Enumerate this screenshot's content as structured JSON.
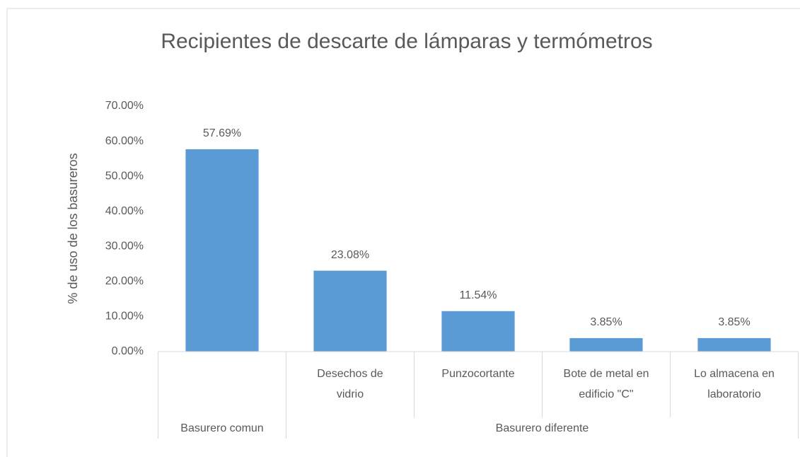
{
  "chart_data": {
    "type": "bar",
    "title": "Recipientes de descarte de lámparas y termómetros",
    "y_label": "% de uso de los basureros",
    "category_groups": [
      {
        "label": "Basurero comun",
        "categories": [
          null
        ]
      },
      {
        "label": "Basurero diferente",
        "categories": [
          "Desechos de vidrio",
          "Punzocortante",
          "Bote de metal en edificio \"C\"",
          "Lo almacena en laboratorio"
        ]
      }
    ],
    "values": [
      57.69,
      23.08,
      11.54,
      3.85,
      3.85
    ],
    "value_labels": [
      "57.69%",
      "23.08%",
      "11.54%",
      "3.85%",
      "3.85%"
    ],
    "color": "#5b9bd5",
    "ylim": [
      0,
      70
    ],
    "yticks": [
      {
        "value": 0,
        "label": "0.00%"
      },
      {
        "value": 10,
        "label": "10.00%"
      },
      {
        "value": 20,
        "label": "20.00%"
      },
      {
        "value": 30,
        "label": "30.00%"
      },
      {
        "value": 40,
        "label": "40.00%"
      },
      {
        "value": 50,
        "label": "50.00%"
      },
      {
        "value": 60,
        "label": "60.00%"
      },
      {
        "value": 70,
        "label": "70.00%"
      }
    ],
    "grid": false
  }
}
